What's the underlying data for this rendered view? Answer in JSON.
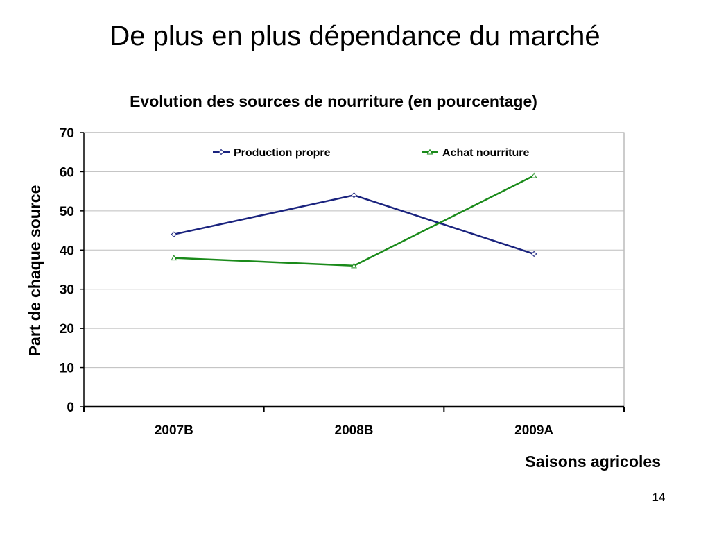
{
  "slide": {
    "title": "De plus en plus dépendance du marché",
    "page_number": "14"
  },
  "chart_data": {
    "type": "line",
    "title": "Evolution des sources de nourriture (en pourcentage)",
    "xlabel": "Saisons agricoles",
    "ylabel": "Part de chaque source",
    "categories": [
      "2007B",
      "2008B",
      "2009A"
    ],
    "ylim": [
      0,
      70
    ],
    "yticks": [
      0,
      10,
      20,
      30,
      40,
      50,
      60,
      70
    ],
    "grid": true,
    "legend_position": "top",
    "series": [
      {
        "name": "Production propre",
        "values": [
          44,
          54,
          39
        ],
        "color": "#1a237e",
        "marker": "diamond"
      },
      {
        "name": "Achat nourriture",
        "values": [
          38,
          36,
          59
        ],
        "color": "#1a8a1a",
        "marker": "triangle"
      }
    ]
  }
}
